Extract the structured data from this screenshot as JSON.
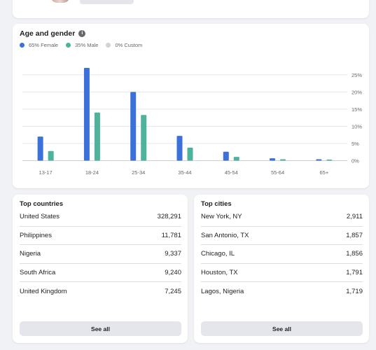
{
  "age_gender": {
    "title": "Age and gender",
    "legend": [
      {
        "label": "65% Female",
        "color": "#3b71d9"
      },
      {
        "label": "35% Male",
        "color": "#4db39a"
      },
      {
        "label": "0% Custom",
        "color": "#d0d3d8"
      }
    ]
  },
  "chart_data": {
    "type": "bar",
    "categories": [
      "13-17",
      "18-24",
      "25-34",
      "35-44",
      "45-54",
      "55-64",
      "65+"
    ],
    "series": [
      {
        "name": "65% Female",
        "color": "#3b71d9",
        "values": [
          7,
          27,
          20,
          7.2,
          2.6,
          0.7,
          0.4
        ]
      },
      {
        "name": "35% Male",
        "color": "#4db39a",
        "values": [
          2.8,
          14,
          13.3,
          3.8,
          1.1,
          0.4,
          0.3
        ]
      },
      {
        "name": "0% Custom",
        "color": "#d0d3d8",
        "values": [
          0,
          0,
          0,
          0,
          0,
          0,
          0
        ]
      }
    ],
    "yticks": [
      "0%",
      "5%",
      "10%",
      "15%",
      "20%",
      "25%"
    ],
    "ylim": [
      0,
      27
    ],
    "grid": true,
    "legend_position": "top-left"
  },
  "top_countries": {
    "title": "Top countries",
    "rows": [
      {
        "name": "United States",
        "value": "328,291"
      },
      {
        "name": "Philippines",
        "value": "11,781"
      },
      {
        "name": "Nigeria",
        "value": "9,337"
      },
      {
        "name": "South Africa",
        "value": "9,240"
      },
      {
        "name": "United Kingdom",
        "value": "7,245"
      }
    ],
    "button": "See all"
  },
  "top_cities": {
    "title": "Top cities",
    "rows": [
      {
        "name": "New York, NY",
        "value": "2,911"
      },
      {
        "name": "San Antonio, TX",
        "value": "1,857"
      },
      {
        "name": "Chicago, IL",
        "value": "1,856"
      },
      {
        "name": "Houston, TX",
        "value": "1,791"
      },
      {
        "name": "Lagos, Nigeria",
        "value": "1,719"
      }
    ],
    "button": "See all"
  }
}
